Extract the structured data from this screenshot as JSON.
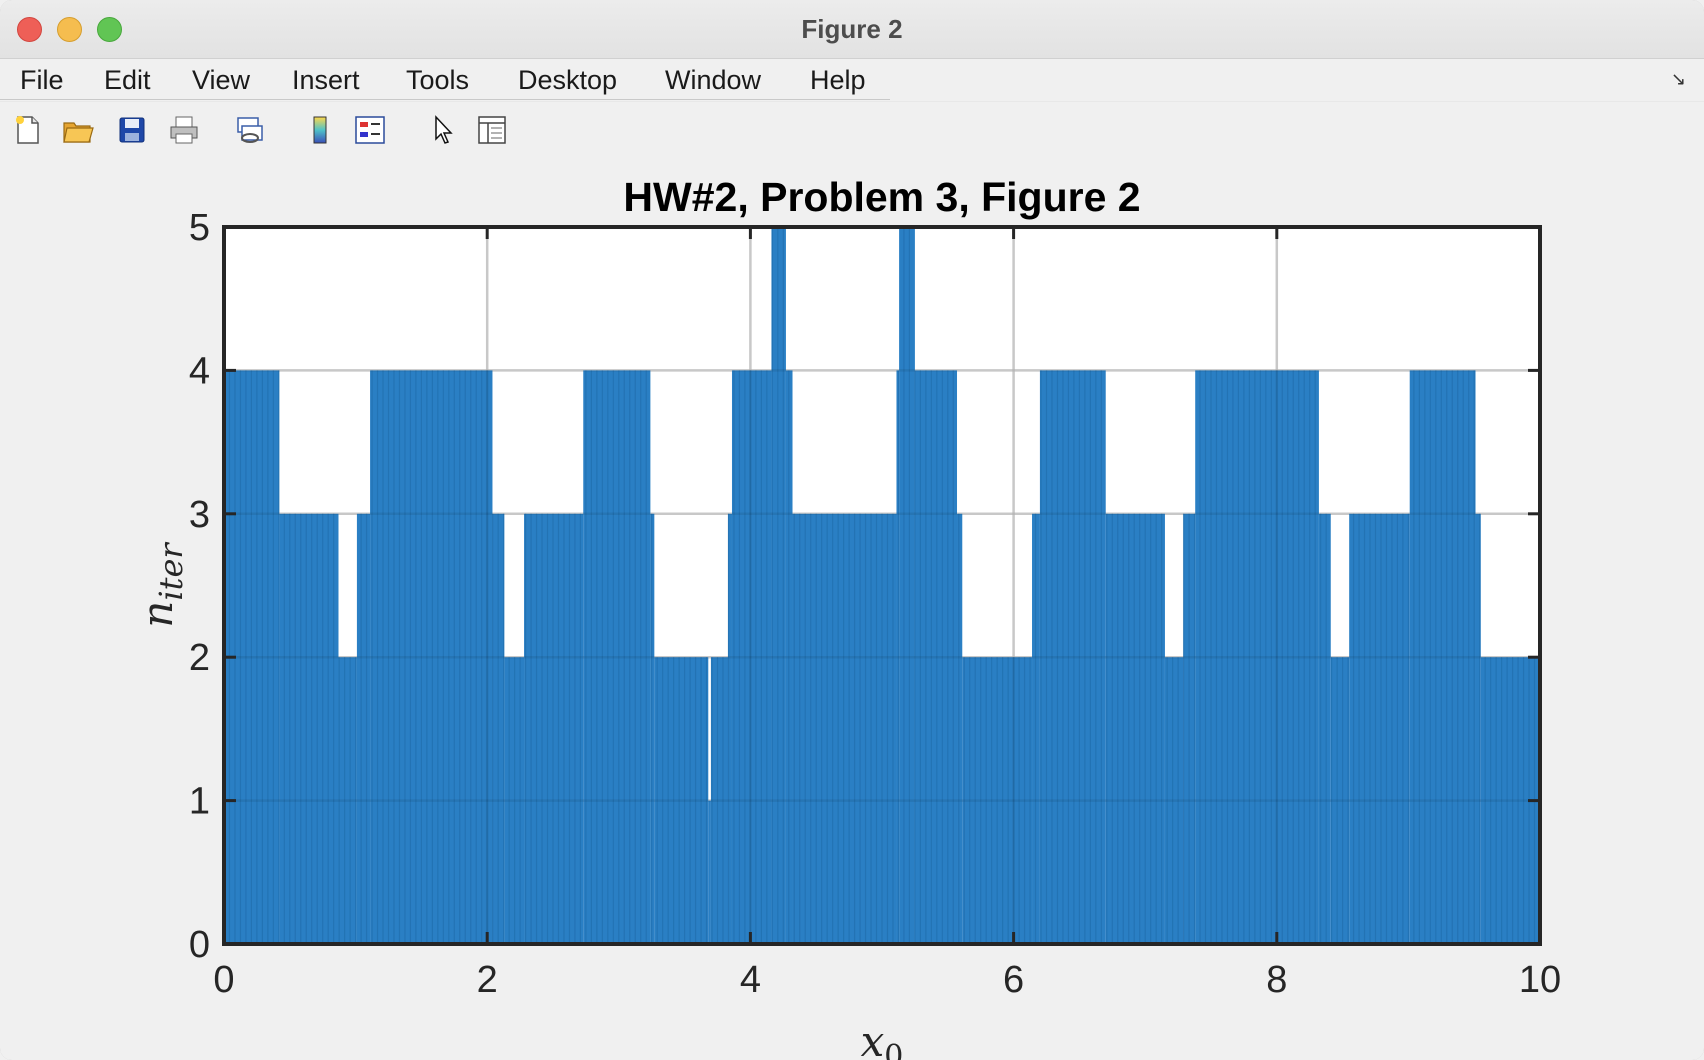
{
  "window": {
    "title": "Figure 2"
  },
  "menu": {
    "items": [
      "File",
      "Edit",
      "View",
      "Insert",
      "Tools",
      "Desktop",
      "Window",
      "Help"
    ]
  },
  "toolbar": {
    "icons": [
      "new-figure-icon",
      "open-file-icon",
      "save-icon",
      "print-icon",
      "link-plot-icon",
      "colorbar-icon",
      "legend-icon",
      "pointer-icon",
      "property-editor-icon"
    ]
  },
  "colors": {
    "bar": "#2a7fc4",
    "bar_stroke": "#1d6aa8",
    "axes_bg": "#ffffff",
    "figure_bg": "#f0f0f0"
  },
  "chart_data": {
    "type": "bar",
    "title": "HW#2, Problem 3, Figure 2",
    "xlabel": "x0",
    "ylabel": "n_iter",
    "xlim": [
      0,
      10
    ],
    "ylim": [
      0,
      5
    ],
    "xticks": [
      0,
      2,
      4,
      6,
      8,
      10
    ],
    "yticks": [
      0,
      1,
      2,
      3,
      4,
      5
    ],
    "grid": true,
    "series": [
      {
        "segments": [
          {
            "x": [
              0.0,
              0.42
            ],
            "y": 4
          },
          {
            "x": [
              0.42,
              0.87
            ],
            "y": 3
          },
          {
            "x": [
              0.87,
              1.01
            ],
            "y": 2
          },
          {
            "x": [
              1.01,
              1.11
            ],
            "y": 3
          },
          {
            "x": [
              1.11,
              2.04
            ],
            "y": 4
          },
          {
            "x": [
              2.04,
              2.13
            ],
            "y": 3
          },
          {
            "x": [
              2.13,
              2.28
            ],
            "y": 2
          },
          {
            "x": [
              2.28,
              2.73
            ],
            "y": 3
          },
          {
            "x": [
              2.73,
              3.24
            ],
            "y": 4
          },
          {
            "x": [
              3.24,
              3.27
            ],
            "y": 3
          },
          {
            "x": [
              3.27,
              3.68
            ],
            "y": 2
          },
          {
            "x": [
              3.68,
              3.7
            ],
            "y": 1
          },
          {
            "x": [
              3.7,
              3.83
            ],
            "y": 2
          },
          {
            "x": [
              3.83,
              3.86
            ],
            "y": 3
          },
          {
            "x": [
              3.86,
              4.16
            ],
            "y": 4
          },
          {
            "x": [
              4.16,
              4.27
            ],
            "y": 5
          },
          {
            "x": [
              4.27,
              4.32
            ],
            "y": 4
          },
          {
            "x": [
              4.32,
              5.11
            ],
            "y": 3
          },
          {
            "x": [
              5.11,
              5.13
            ],
            "y": 4
          },
          {
            "x": [
              5.13,
              5.25
            ],
            "y": 5
          },
          {
            "x": [
              5.25,
              5.57
            ],
            "y": 4
          },
          {
            "x": [
              5.57,
              5.61
            ],
            "y": 3
          },
          {
            "x": [
              5.61,
              6.14
            ],
            "y": 2
          },
          {
            "x": [
              6.14,
              6.2
            ],
            "y": 3
          },
          {
            "x": [
              6.2,
              6.7
            ],
            "y": 4
          },
          {
            "x": [
              6.7,
              7.15
            ],
            "y": 3
          },
          {
            "x": [
              7.15,
              7.29
            ],
            "y": 2
          },
          {
            "x": [
              7.29,
              7.38
            ],
            "y": 3
          },
          {
            "x": [
              7.38,
              8.32
            ],
            "y": 4
          },
          {
            "x": [
              8.32,
              8.41
            ],
            "y": 3
          },
          {
            "x": [
              8.41,
              8.55
            ],
            "y": 2
          },
          {
            "x": [
              8.55,
              9.01
            ],
            "y": 3
          },
          {
            "x": [
              9.01,
              9.51
            ],
            "y": 4
          },
          {
            "x": [
              9.51,
              9.55
            ],
            "y": 3
          },
          {
            "x": [
              9.55,
              10.0
            ],
            "y": 2
          }
        ]
      }
    ]
  }
}
